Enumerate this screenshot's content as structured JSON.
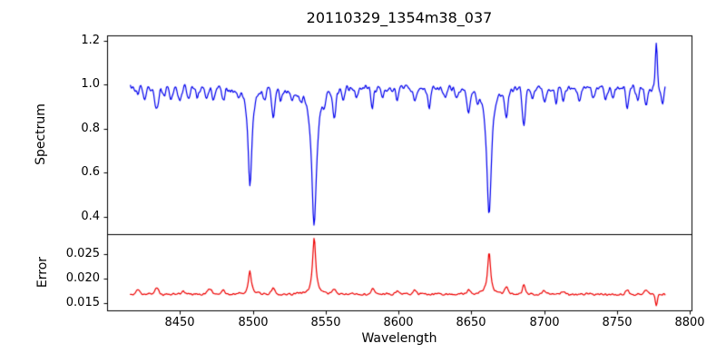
{
  "figure": {
    "title": "20110329_1354m38_037",
    "xlabel": "Wavelength",
    "background_color": "#ffffff",
    "frame_color": "#000000",
    "text_color": "#000000"
  },
  "chart_data": [
    {
      "type": "line",
      "name": "spectrum-panel",
      "title": "20110329_1354m38_037",
      "ylabel": "Spectrum",
      "line_color": "#0000ee",
      "xlim": [
        8400,
        8801
      ],
      "ylim": [
        0.32,
        1.225
      ],
      "yticks": [
        0.4,
        0.6,
        0.8,
        1.0,
        1.2
      ],
      "ytick_labels": [
        "0.4",
        "0.6",
        "0.8",
        "1.0",
        "1.2"
      ],
      "x_start": 8416,
      "x_end": 8783,
      "x_step": 0.55,
      "continuum": 0.985,
      "noise_sigma": 0.021,
      "noise_seed": 12345,
      "grid": false,
      "features": [
        {
          "center": 8498.0,
          "amplitude": -0.435,
          "width": 1.6,
          "shape": "lorentzian"
        },
        {
          "center": 8542.1,
          "amplitude": -0.625,
          "width": 2.0,
          "shape": "lorentzian"
        },
        {
          "center": 8662.1,
          "amplitude": -0.585,
          "width": 1.9,
          "shape": "lorentzian"
        },
        {
          "center": 8421.0,
          "amplitude": -0.04,
          "width": 0.9,
          "shape": "gaussian"
        },
        {
          "center": 8426.0,
          "amplitude": -0.06,
          "width": 0.9,
          "shape": "gaussian"
        },
        {
          "center": 8434.0,
          "amplitude": -0.1,
          "width": 1.1,
          "shape": "gaussian"
        },
        {
          "center": 8439.0,
          "amplitude": -0.04,
          "width": 0.9,
          "shape": "gaussian"
        },
        {
          "center": 8444.0,
          "amplitude": -0.05,
          "width": 0.9,
          "shape": "gaussian"
        },
        {
          "center": 8450.0,
          "amplitude": -0.06,
          "width": 0.9,
          "shape": "gaussian"
        },
        {
          "center": 8456.0,
          "amplitude": -0.04,
          "width": 0.9,
          "shape": "gaussian"
        },
        {
          "center": 8462.0,
          "amplitude": -0.05,
          "width": 0.9,
          "shape": "gaussian"
        },
        {
          "center": 8468.0,
          "amplitude": -0.06,
          "width": 0.9,
          "shape": "gaussian"
        },
        {
          "center": 8473.0,
          "amplitude": -0.04,
          "width": 0.9,
          "shape": "gaussian"
        },
        {
          "center": 8480.0,
          "amplitude": -0.05,
          "width": 0.9,
          "shape": "gaussian"
        },
        {
          "center": 8490.0,
          "amplitude": -0.04,
          "width": 0.9,
          "shape": "gaussian"
        },
        {
          "center": 8508.0,
          "amplitude": -0.04,
          "width": 0.9,
          "shape": "gaussian"
        },
        {
          "center": 8514.0,
          "amplitude": -0.12,
          "width": 1.0,
          "shape": "gaussian"
        },
        {
          "center": 8519.0,
          "amplitude": -0.06,
          "width": 0.9,
          "shape": "gaussian"
        },
        {
          "center": 8527.0,
          "amplitude": -0.05,
          "width": 0.9,
          "shape": "gaussian"
        },
        {
          "center": 8533.0,
          "amplitude": -0.04,
          "width": 0.9,
          "shape": "gaussian"
        },
        {
          "center": 8549.0,
          "amplitude": -0.05,
          "width": 0.9,
          "shape": "gaussian"
        },
        {
          "center": 8556.0,
          "amplitude": -0.12,
          "width": 1.0,
          "shape": "gaussian"
        },
        {
          "center": 8562.0,
          "amplitude": -0.05,
          "width": 0.9,
          "shape": "gaussian"
        },
        {
          "center": 8571.0,
          "amplitude": -0.04,
          "width": 0.9,
          "shape": "gaussian"
        },
        {
          "center": 8582.0,
          "amplitude": -0.09,
          "width": 0.9,
          "shape": "gaussian"
        },
        {
          "center": 8589.0,
          "amplitude": -0.04,
          "width": 0.9,
          "shape": "gaussian"
        },
        {
          "center": 8599.0,
          "amplitude": -0.05,
          "width": 0.9,
          "shape": "gaussian"
        },
        {
          "center": 8611.0,
          "amplitude": -0.07,
          "width": 0.9,
          "shape": "gaussian"
        },
        {
          "center": 8621.0,
          "amplitude": -0.08,
          "width": 0.9,
          "shape": "gaussian"
        },
        {
          "center": 8632.0,
          "amplitude": -0.04,
          "width": 0.9,
          "shape": "gaussian"
        },
        {
          "center": 8640.0,
          "amplitude": -0.04,
          "width": 0.9,
          "shape": "gaussian"
        },
        {
          "center": 8648.0,
          "amplitude": -0.11,
          "width": 1.0,
          "shape": "gaussian"
        },
        {
          "center": 8654.0,
          "amplitude": -0.04,
          "width": 0.9,
          "shape": "gaussian"
        },
        {
          "center": 8674.0,
          "amplitude": -0.12,
          "width": 1.0,
          "shape": "gaussian"
        },
        {
          "center": 8686.0,
          "amplitude": -0.17,
          "width": 1.1,
          "shape": "gaussian"
        },
        {
          "center": 8692.0,
          "amplitude": -0.05,
          "width": 0.9,
          "shape": "gaussian"
        },
        {
          "center": 8700.0,
          "amplitude": -0.06,
          "width": 0.9,
          "shape": "gaussian"
        },
        {
          "center": 8708.0,
          "amplitude": -0.07,
          "width": 0.9,
          "shape": "gaussian"
        },
        {
          "center": 8713.0,
          "amplitude": -0.06,
          "width": 0.9,
          "shape": "gaussian"
        },
        {
          "center": 8724.0,
          "amplitude": -0.07,
          "width": 0.9,
          "shape": "gaussian"
        },
        {
          "center": 8734.0,
          "amplitude": -0.05,
          "width": 0.9,
          "shape": "gaussian"
        },
        {
          "center": 8742.0,
          "amplitude": -0.04,
          "width": 0.9,
          "shape": "gaussian"
        },
        {
          "center": 8747.0,
          "amplitude": -0.06,
          "width": 0.9,
          "shape": "gaussian"
        },
        {
          "center": 8757.0,
          "amplitude": -0.08,
          "width": 0.9,
          "shape": "gaussian"
        },
        {
          "center": 8764.0,
          "amplitude": -0.06,
          "width": 0.9,
          "shape": "gaussian"
        },
        {
          "center": 8770.0,
          "amplitude": -0.09,
          "width": 0.9,
          "shape": "gaussian"
        },
        {
          "center": 8776.8,
          "amplitude": 0.2,
          "width": 0.7,
          "shape": "gaussian"
        },
        {
          "center": 8781.0,
          "amplitude": -0.06,
          "width": 0.9,
          "shape": "gaussian"
        }
      ]
    },
    {
      "type": "line",
      "name": "error-panel",
      "ylabel": "Error",
      "xlabel": "Wavelength",
      "line_color": "#ee0000",
      "xlim": [
        8400,
        8801
      ],
      "ylim": [
        0.0135,
        0.0291
      ],
      "yticks": [
        0.015,
        0.02,
        0.025
      ],
      "ytick_labels": [
        "0.015",
        "0.020",
        "0.025"
      ],
      "xticks": [
        8450,
        8500,
        8550,
        8600,
        8650,
        8700,
        8750,
        8800
      ],
      "xtick_labels": [
        "8450",
        "8500",
        "8550",
        "8600",
        "8650",
        "8700",
        "8750",
        "8800"
      ],
      "x_start": 8416,
      "x_end": 8783,
      "x_step": 0.55,
      "continuum": 0.0168,
      "noise_sigma": 0.00032,
      "noise_seed": 67890,
      "grid": false,
      "features": [
        {
          "center": 8421.0,
          "amplitude": 0.0008,
          "width": 1.2,
          "shape": "gaussian"
        },
        {
          "center": 8434.0,
          "amplitude": 0.0015,
          "width": 1.2,
          "shape": "gaussian"
        },
        {
          "center": 8452.0,
          "amplitude": 0.0008,
          "width": 1.2,
          "shape": "gaussian"
        },
        {
          "center": 8470.0,
          "amplitude": 0.0012,
          "width": 1.5,
          "shape": "gaussian"
        },
        {
          "center": 8480.0,
          "amplitude": 0.0007,
          "width": 1.2,
          "shape": "gaussian"
        },
        {
          "center": 8498.0,
          "amplitude": 0.0047,
          "width": 1.2,
          "shape": "lorentzian"
        },
        {
          "center": 8514.0,
          "amplitude": 0.0012,
          "width": 1.2,
          "shape": "gaussian"
        },
        {
          "center": 8542.1,
          "amplitude": 0.0116,
          "width": 1.3,
          "shape": "lorentzian"
        },
        {
          "center": 8556.0,
          "amplitude": 0.0009,
          "width": 1.2,
          "shape": "gaussian"
        },
        {
          "center": 8582.0,
          "amplitude": 0.001,
          "width": 1.2,
          "shape": "gaussian"
        },
        {
          "center": 8599.0,
          "amplitude": 0.0006,
          "width": 1.2,
          "shape": "gaussian"
        },
        {
          "center": 8611.0,
          "amplitude": 0.0007,
          "width": 1.2,
          "shape": "gaussian"
        },
        {
          "center": 8648.0,
          "amplitude": 0.0008,
          "width": 1.2,
          "shape": "gaussian"
        },
        {
          "center": 8662.1,
          "amplitude": 0.0086,
          "width": 1.3,
          "shape": "lorentzian"
        },
        {
          "center": 8674.0,
          "amplitude": 0.0014,
          "width": 1.2,
          "shape": "gaussian"
        },
        {
          "center": 8686.0,
          "amplitude": 0.002,
          "width": 1.0,
          "shape": "gaussian"
        },
        {
          "center": 8700.0,
          "amplitude": 0.0007,
          "width": 1.2,
          "shape": "gaussian"
        },
        {
          "center": 8713.0,
          "amplitude": 0.0007,
          "width": 1.2,
          "shape": "gaussian"
        },
        {
          "center": 8757.0,
          "amplitude": 0.0008,
          "width": 1.2,
          "shape": "gaussian"
        },
        {
          "center": 8770.0,
          "amplitude": 0.0009,
          "width": 1.2,
          "shape": "gaussian"
        },
        {
          "center": 8776.8,
          "amplitude": -0.0022,
          "width": 0.7,
          "shape": "gaussian"
        }
      ]
    }
  ]
}
